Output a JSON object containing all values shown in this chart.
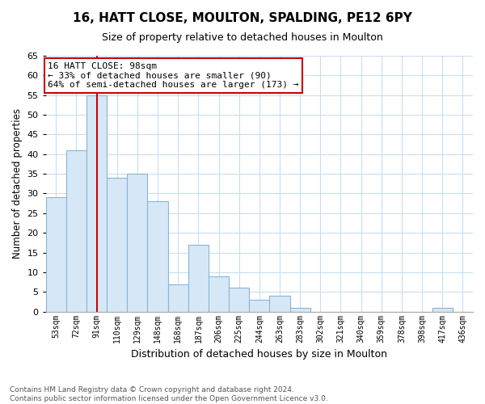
{
  "title": "16, HATT CLOSE, MOULTON, SPALDING, PE12 6PY",
  "subtitle": "Size of property relative to detached houses in Moulton",
  "xlabel": "Distribution of detached houses by size in Moulton",
  "ylabel": "Number of detached properties",
  "bar_color": "#d6e8f7",
  "bar_edge_color": "#8ab4d4",
  "background_color": "#ffffff",
  "grid_color": "#c8dff0",
  "bin_labels": [
    "53sqm",
    "72sqm",
    "91sqm",
    "110sqm",
    "129sqm",
    "148sqm",
    "168sqm",
    "187sqm",
    "206sqm",
    "225sqm",
    "244sqm",
    "263sqm",
    "283sqm",
    "302sqm",
    "321sqm",
    "340sqm",
    "359sqm",
    "378sqm",
    "398sqm",
    "417sqm",
    "436sqm"
  ],
  "bin_values": [
    29,
    41,
    55,
    34,
    35,
    28,
    7,
    17,
    9,
    6,
    3,
    4,
    1,
    0,
    0,
    0,
    0,
    0,
    0,
    1,
    0
  ],
  "ylim": [
    0,
    65
  ],
  "yticks": [
    0,
    5,
    10,
    15,
    20,
    25,
    30,
    35,
    40,
    45,
    50,
    55,
    60,
    65
  ],
  "property_line_x": 2,
  "property_line_color": "#cc0000",
  "annotation_title": "16 HATT CLOSE: 98sqm",
  "annotation_line1": "← 33% of detached houses are smaller (90)",
  "annotation_line2": "64% of semi-detached houses are larger (173) →",
  "annotation_box_color": "#ffffff",
  "annotation_box_edge": "#cc0000",
  "footer_line1": "Contains HM Land Registry data © Crown copyright and database right 2024.",
  "footer_line2": "Contains public sector information licensed under the Open Government Licence v3.0."
}
